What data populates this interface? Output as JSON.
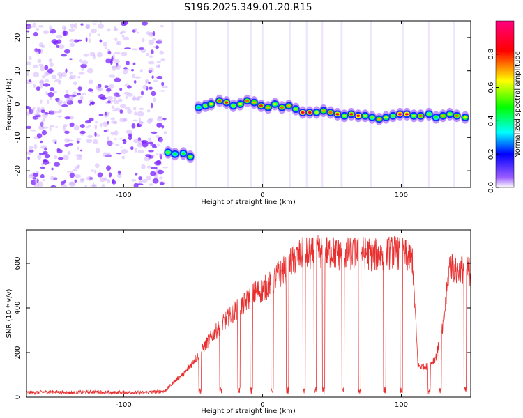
{
  "chart_data": [
    {
      "type": "heatmap",
      "title": "S196.2025.349.01.20.R15",
      "xlabel": "Height of straight line (km)",
      "ylabel": "Frequency (Hz)",
      "xlim": [
        -170,
        150
      ],
      "ylim": [
        -25,
        25
      ],
      "x_ticks": [
        -100,
        0,
        100
      ],
      "x_tick_labels": [
        "-100",
        "0",
        "100"
      ],
      "y_ticks": [
        -20,
        -10,
        0,
        10,
        20
      ],
      "y_tick_labels": [
        "-20",
        "-10",
        "0",
        "10",
        "20"
      ],
      "colorbar": {
        "label": "Normalized spectral amplitude",
        "range": [
          0,
          1
        ],
        "ticks": [
          0,
          0.2,
          0.4,
          0.6,
          0.8
        ],
        "tick_labels": [
          "0.0",
          "0.2",
          "0.4",
          "0.6",
          "0.8"
        ],
        "colors": [
          "#ffffff",
          "#9b5cff",
          "#0000ff",
          "#00ffff",
          "#00ff00",
          "#ffff00",
          "#ff0000",
          "#ff0080"
        ]
      },
      "noise_region": {
        "x_range": [
          -170,
          -70
        ],
        "y_range": [
          -25,
          25
        ]
      },
      "track_points": [
        {
          "x": -68,
          "y": -14.5,
          "amp": 0.55
        },
        {
          "x": -63,
          "y": -15.0,
          "amp": 0.45
        },
        {
          "x": -57,
          "y": -14.8,
          "amp": 0.5
        },
        {
          "x": -52,
          "y": -15.8,
          "amp": 0.6
        },
        {
          "x": -46,
          "y": -1.0,
          "amp": 0.45
        },
        {
          "x": -41,
          "y": -0.5,
          "amp": 0.55
        },
        {
          "x": -37,
          "y": 0.0,
          "amp": 0.65
        },
        {
          "x": -31,
          "y": 1.0,
          "amp": 0.75
        },
        {
          "x": -26,
          "y": 0.5,
          "amp": 0.8
        },
        {
          "x": -21,
          "y": -0.5,
          "amp": 0.55
        },
        {
          "x": -16,
          "y": 0.0,
          "amp": 0.65
        },
        {
          "x": -11,
          "y": 1.0,
          "amp": 0.75
        },
        {
          "x": -6,
          "y": 0.5,
          "amp": 0.7
        },
        {
          "x": -1,
          "y": -0.5,
          "amp": 0.8
        },
        {
          "x": 4,
          "y": -1.0,
          "amp": 0.7
        },
        {
          "x": 9,
          "y": 0.0,
          "amp": 0.6
        },
        {
          "x": 14,
          "y": -1.0,
          "amp": 0.75
        },
        {
          "x": 19,
          "y": -0.5,
          "amp": 0.7
        },
        {
          "x": 24,
          "y": -1.5,
          "amp": 0.6
        },
        {
          "x": 29,
          "y": -2.5,
          "amp": 0.9
        },
        {
          "x": 34,
          "y": -2.5,
          "amp": 0.85
        },
        {
          "x": 39,
          "y": -2.5,
          "amp": 0.6
        },
        {
          "x": 44,
          "y": -2.0,
          "amp": 0.7
        },
        {
          "x": 49,
          "y": -2.5,
          "amp": 0.75
        },
        {
          "x": 54,
          "y": -3.0,
          "amp": 0.85
        },
        {
          "x": 59,
          "y": -3.5,
          "amp": 0.6
        },
        {
          "x": 64,
          "y": -3.0,
          "amp": 0.8
        },
        {
          "x": 69,
          "y": -3.5,
          "amp": 0.9
        },
        {
          "x": 74,
          "y": -3.5,
          "amp": 0.6
        },
        {
          "x": 79,
          "y": -4.0,
          "amp": 0.55
        },
        {
          "x": 84,
          "y": -4.5,
          "amp": 0.7
        },
        {
          "x": 89,
          "y": -4.0,
          "amp": 0.6
        },
        {
          "x": 94,
          "y": -3.5,
          "amp": 0.55
        },
        {
          "x": 99,
          "y": -3.0,
          "amp": 0.95
        },
        {
          "x": 104,
          "y": -3.0,
          "amp": 0.9
        },
        {
          "x": 109,
          "y": -3.5,
          "amp": 0.6
        },
        {
          "x": 114,
          "y": -3.5,
          "amp": 0.75
        },
        {
          "x": 120,
          "y": -3.0,
          "amp": 0.55
        },
        {
          "x": 125,
          "y": -4.0,
          "amp": 0.5
        },
        {
          "x": 130,
          "y": -3.5,
          "amp": 0.7
        },
        {
          "x": 135,
          "y": -3.0,
          "amp": 0.6
        },
        {
          "x": 140,
          "y": -3.5,
          "amp": 0.75
        },
        {
          "x": 146,
          "y": -4.0,
          "amp": 0.65
        }
      ],
      "vertical_streaks_x": [
        -65,
        -48,
        -25,
        -8,
        0,
        20,
        32,
        43,
        57,
        78,
        101,
        120,
        138
      ]
    },
    {
      "type": "line",
      "title": "",
      "xlabel": "Height of straight line (km)",
      "ylabel": "SNR (10 * v/v)",
      "xlim": [
        -170,
        150
      ],
      "ylim": [
        0,
        750
      ],
      "x_ticks": [
        -100,
        0,
        100
      ],
      "x_tick_labels": [
        "-100",
        "0",
        "100"
      ],
      "y_ticks": [
        0,
        200,
        400,
        600
      ],
      "y_tick_labels": [
        "0",
        "200",
        "400",
        "600"
      ],
      "series": [
        {
          "name": "SNR",
          "color": "#e83030",
          "x": [
            -170,
            -160,
            -150,
            -140,
            -130,
            -120,
            -110,
            -100,
            -90,
            -80,
            -70,
            -65,
            -60,
            -55,
            -50,
            -45,
            -40,
            -35,
            -30,
            -25,
            -20,
            -15,
            -10,
            -5,
            0,
            5,
            10,
            15,
            20,
            25,
            30,
            35,
            40,
            45,
            50,
            55,
            60,
            65,
            70,
            75,
            80,
            85,
            90,
            95,
            100,
            105,
            108,
            112,
            116,
            120,
            125,
            130,
            135,
            140,
            145,
            150
          ],
          "values": [
            20,
            22,
            24,
            20,
            22,
            24,
            20,
            22,
            20,
            22,
            28,
            60,
            90,
            115,
            160,
            195,
            245,
            285,
            320,
            355,
            385,
            410,
            440,
            470,
            480,
            505,
            540,
            565,
            600,
            630,
            645,
            640,
            650,
            655,
            650,
            640,
            645,
            640,
            650,
            645,
            635,
            640,
            645,
            650,
            640,
            630,
            625,
            140,
            135,
            140,
            180,
            310,
            600,
            560,
            580,
            560
          ]
        }
      ],
      "dropouts_x": [
        -45,
        -30,
        -17,
        -8,
        7,
        18,
        30,
        38,
        44,
        58,
        70,
        88,
        100,
        120,
        128,
        146
      ]
    }
  ]
}
